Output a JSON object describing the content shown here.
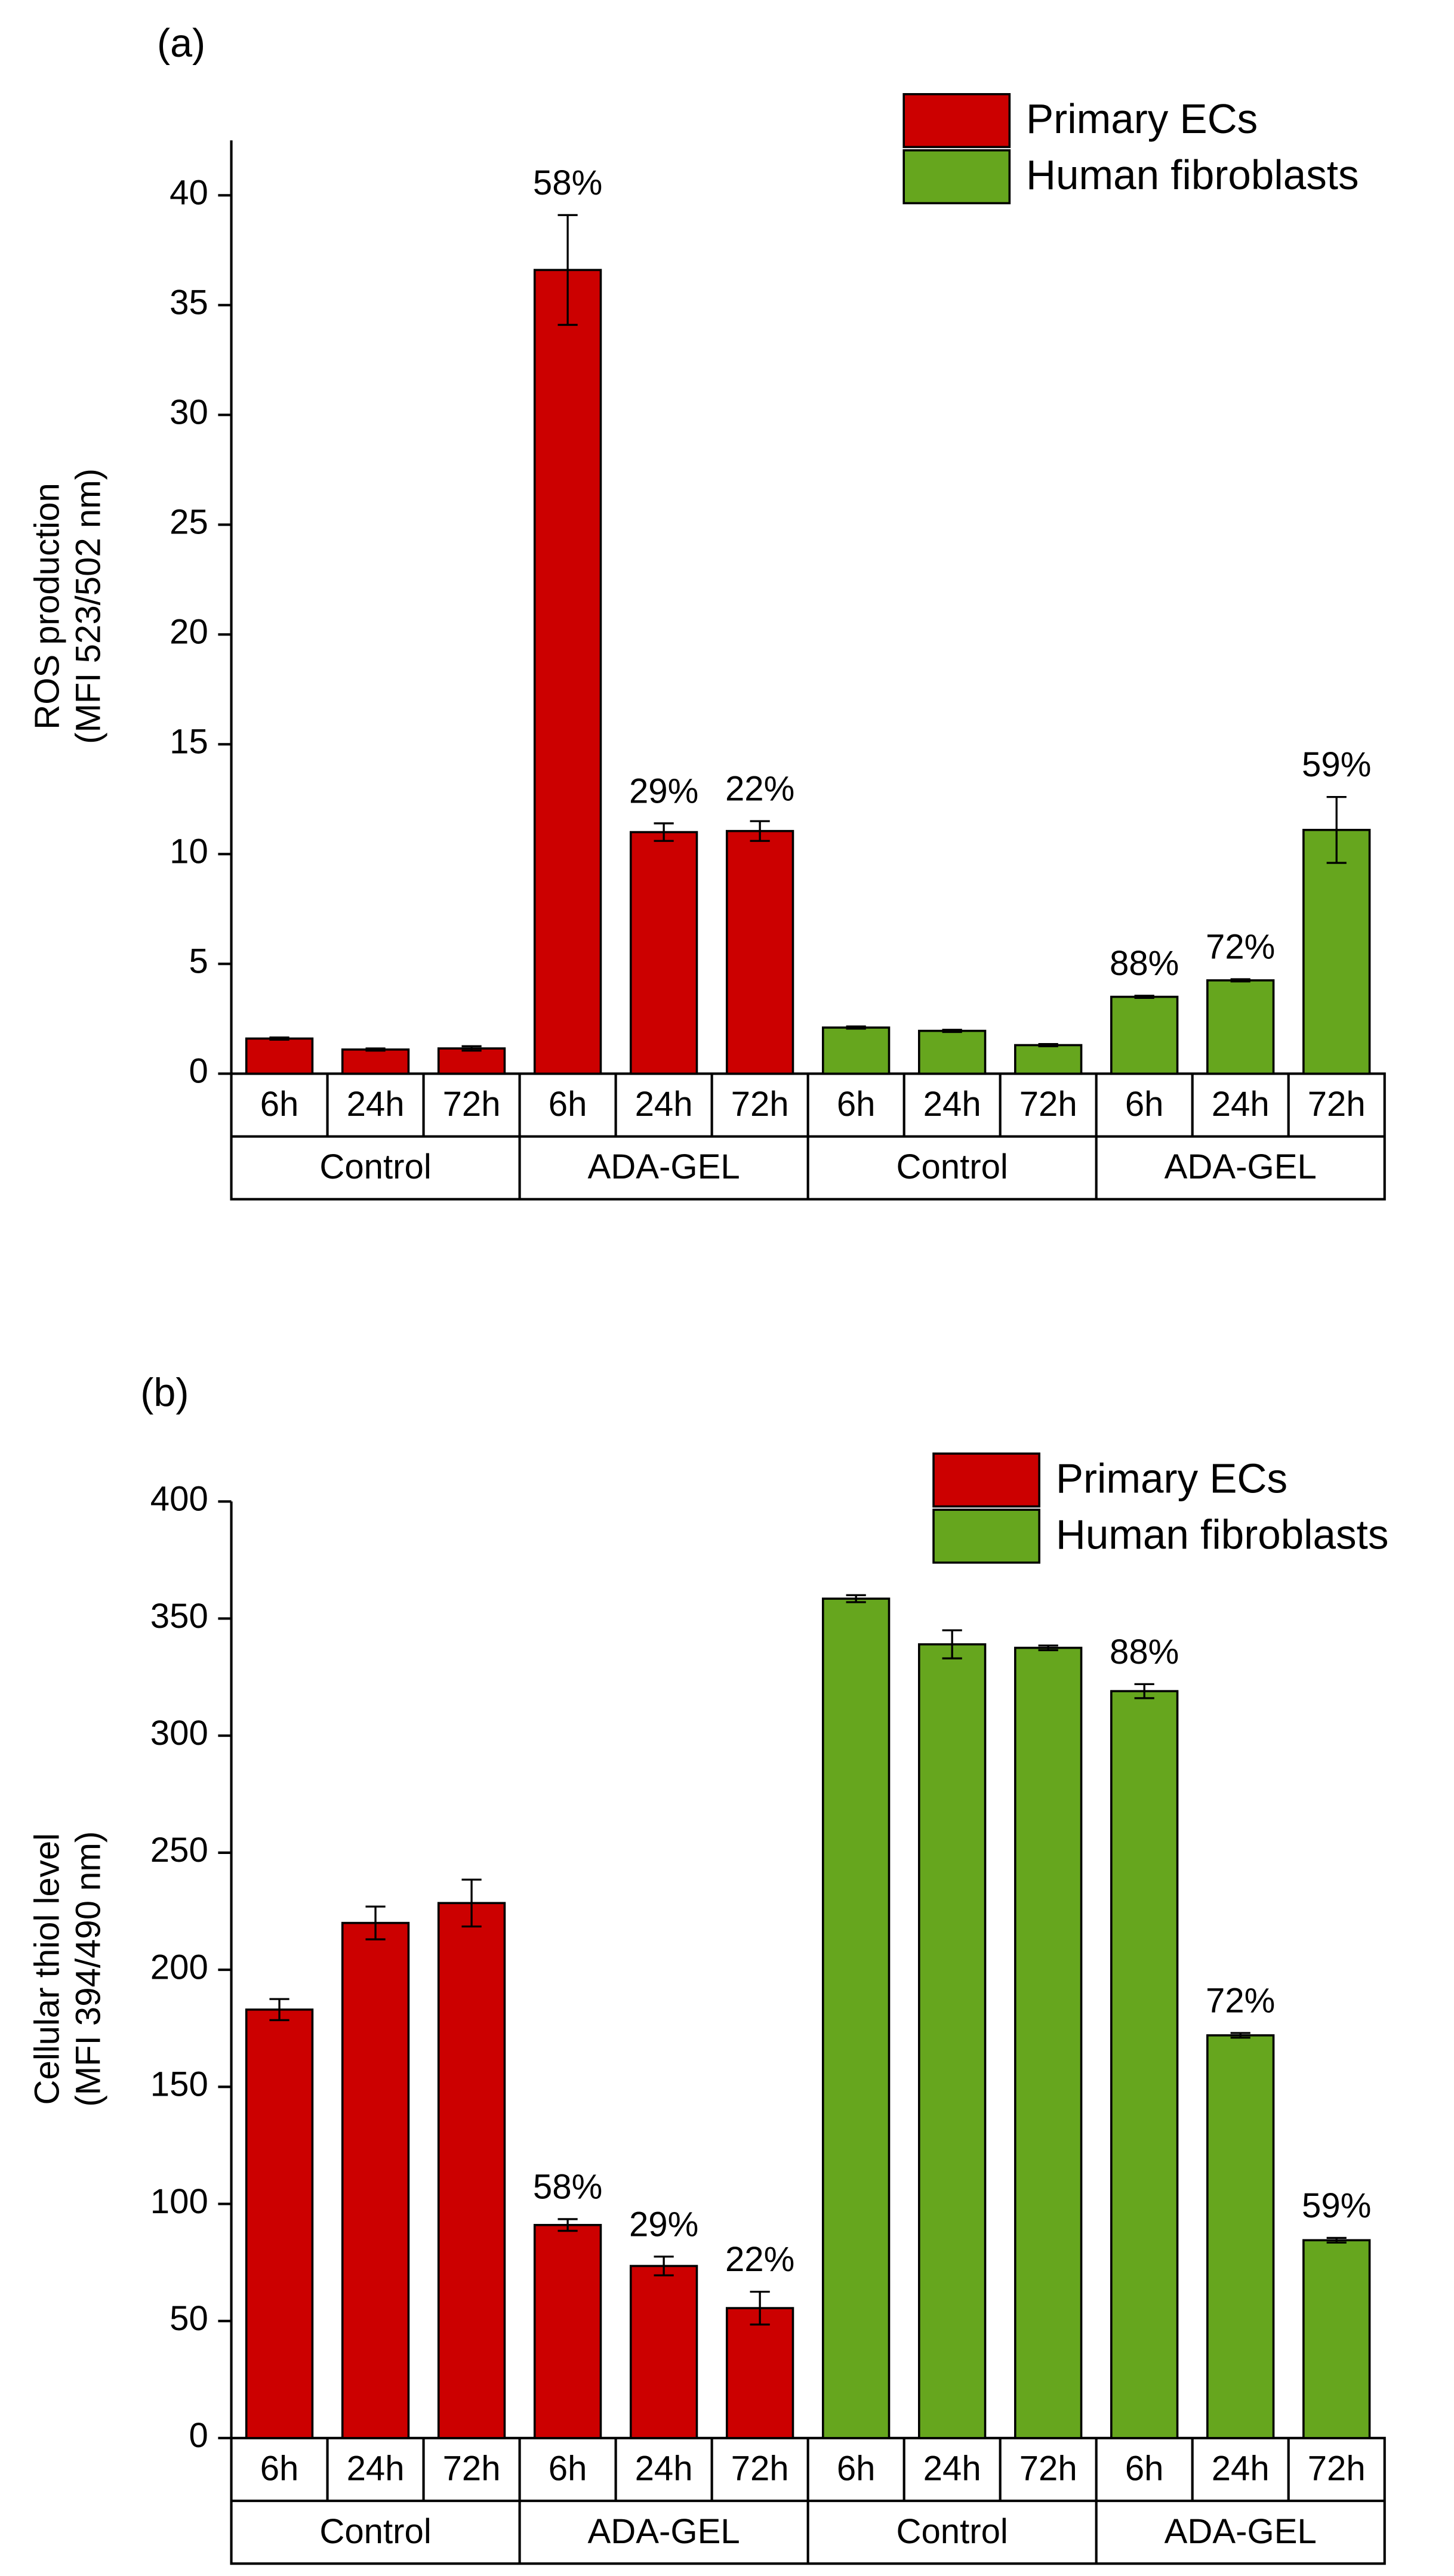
{
  "chart_data": [
    {
      "type": "bar",
      "panel_label": "(a)",
      "y_label": [
        "ROS production",
        "(MFI 523/502 nm)"
      ],
      "categories": [
        "6h",
        "24h",
        "72h",
        "6h",
        "24h",
        "72h",
        "6h",
        "24h",
        "72h",
        "6h",
        "24h",
        "72h"
      ],
      "groups": [
        "Control",
        "ADA-GEL",
        "Control",
        "ADA-GEL"
      ],
      "ylim": [
        0,
        42.5
      ],
      "yticks": [
        0,
        5,
        10,
        15,
        20,
        25,
        30,
        35,
        40
      ],
      "legend": "upper right",
      "series": [
        {
          "name": "Primary ECs",
          "color": "#cc0000",
          "values": [
            1.6,
            1.1,
            1.15,
            36.6,
            11.0,
            11.05,
            null,
            null,
            null,
            null,
            null,
            null
          ],
          "errors": [
            0.05,
            0.05,
            0.1,
            2.5,
            0.4,
            0.45,
            null,
            null,
            null,
            null,
            null,
            null
          ],
          "annotations": [
            null,
            null,
            null,
            "58%",
            "29%",
            "22%",
            null,
            null,
            null,
            null,
            null,
            null
          ]
        },
        {
          "name": "Human fibroblasts",
          "color": "#66a61e",
          "values": [
            null,
            null,
            null,
            null,
            null,
            null,
            2.1,
            1.95,
            1.3,
            3.5,
            4.25,
            11.1
          ],
          "errors": [
            null,
            null,
            null,
            null,
            null,
            null,
            0.05,
            0.05,
            0.05,
            0.05,
            0.05,
            1.5
          ],
          "annotations": [
            null,
            null,
            null,
            null,
            null,
            null,
            null,
            null,
            null,
            "88%",
            "72%",
            "59%"
          ]
        }
      ]
    },
    {
      "type": "bar",
      "panel_label": "(b)",
      "y_label": [
        "Cellular thiol level",
        "(MFI 394/490 nm)"
      ],
      "categories": [
        "6h",
        "24h",
        "72h",
        "6h",
        "24h",
        "72h",
        "6h",
        "24h",
        "72h",
        "6h",
        "24h",
        "72h"
      ],
      "groups": [
        "Control",
        "ADA-GEL",
        "Control",
        "ADA-GEL"
      ],
      "ylim": [
        0,
        400
      ],
      "yticks": [
        0,
        50,
        100,
        150,
        200,
        250,
        300,
        350,
        400
      ],
      "legend": "upper right",
      "series": [
        {
          "name": "Primary ECs",
          "color": "#cc0000",
          "values": [
            183,
            220,
            228.5,
            91,
            73.5,
            55.5,
            null,
            null,
            null,
            null,
            null,
            null
          ],
          "errors": [
            4.5,
            7,
            10,
            2.5,
            4,
            7,
            null,
            null,
            null,
            null,
            null,
            null
          ],
          "annotations": [
            null,
            null,
            null,
            "58%",
            "29%",
            "22%",
            null,
            null,
            null,
            null,
            null,
            null
          ]
        },
        {
          "name": "Human fibroblasts",
          "color": "#66a61e",
          "values": [
            null,
            null,
            null,
            null,
            null,
            null,
            358.5,
            339,
            337.5,
            319,
            172,
            84.5
          ],
          "errors": [
            null,
            null,
            null,
            null,
            null,
            null,
            1.5,
            6,
            1,
            3,
            1,
            1
          ],
          "annotations": [
            null,
            null,
            null,
            null,
            null,
            null,
            null,
            null,
            null,
            "88%",
            "72%",
            "59%"
          ]
        }
      ]
    }
  ]
}
